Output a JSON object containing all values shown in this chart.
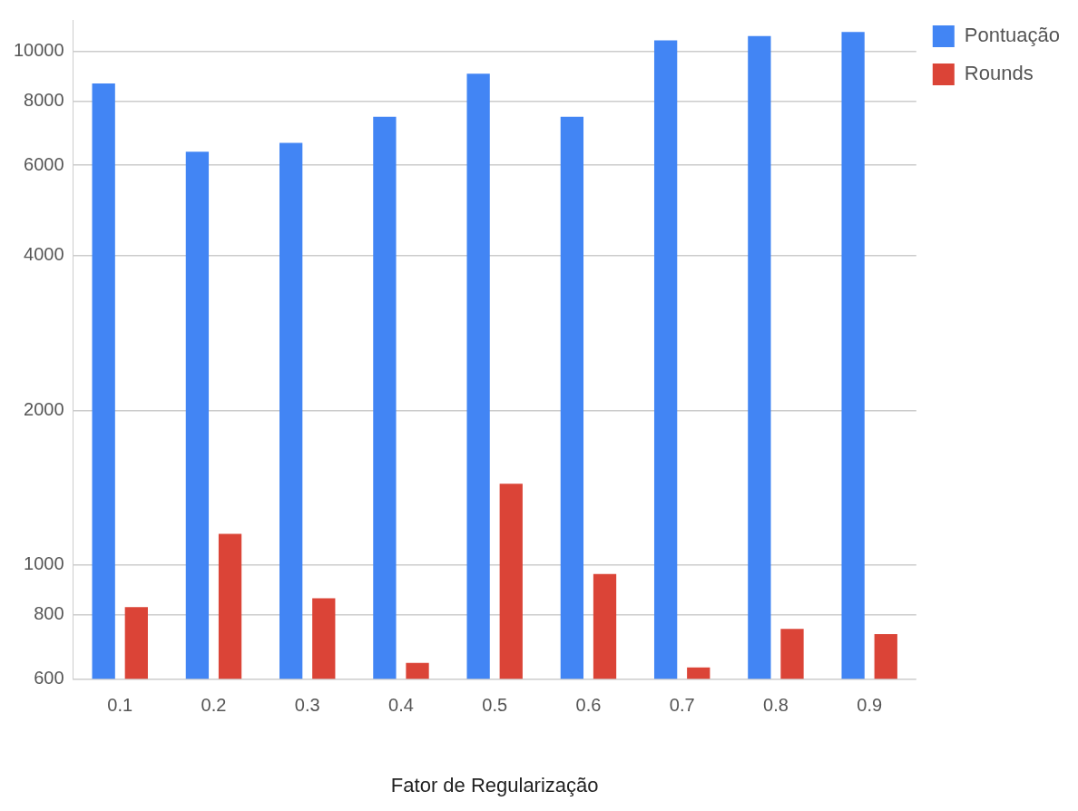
{
  "chart_data": {
    "type": "bar",
    "xlabel": "Fator de Regularização",
    "categories": [
      "0.1",
      "0.2",
      "0.3",
      "0.4",
      "0.5",
      "0.6",
      "0.7",
      "0.8",
      "0.9"
    ],
    "series": [
      {
        "name": "Pontuação",
        "color": "#4285f4",
        "values": [
          8650,
          6370,
          6630,
          7450,
          9040,
          7450,
          10500,
          10700,
          10900
        ]
      },
      {
        "name": "Rounds",
        "color": "#db4437",
        "values": [
          828,
          1150,
          862,
          645,
          1440,
          961,
          632,
          751,
          734
        ]
      }
    ],
    "log": true,
    "ylim": [
      600,
      11500
    ],
    "yticks": [
      600,
      800,
      1000,
      2000,
      4000,
      6000,
      8000,
      10000
    ],
    "grid": "y",
    "legend": "top right"
  }
}
